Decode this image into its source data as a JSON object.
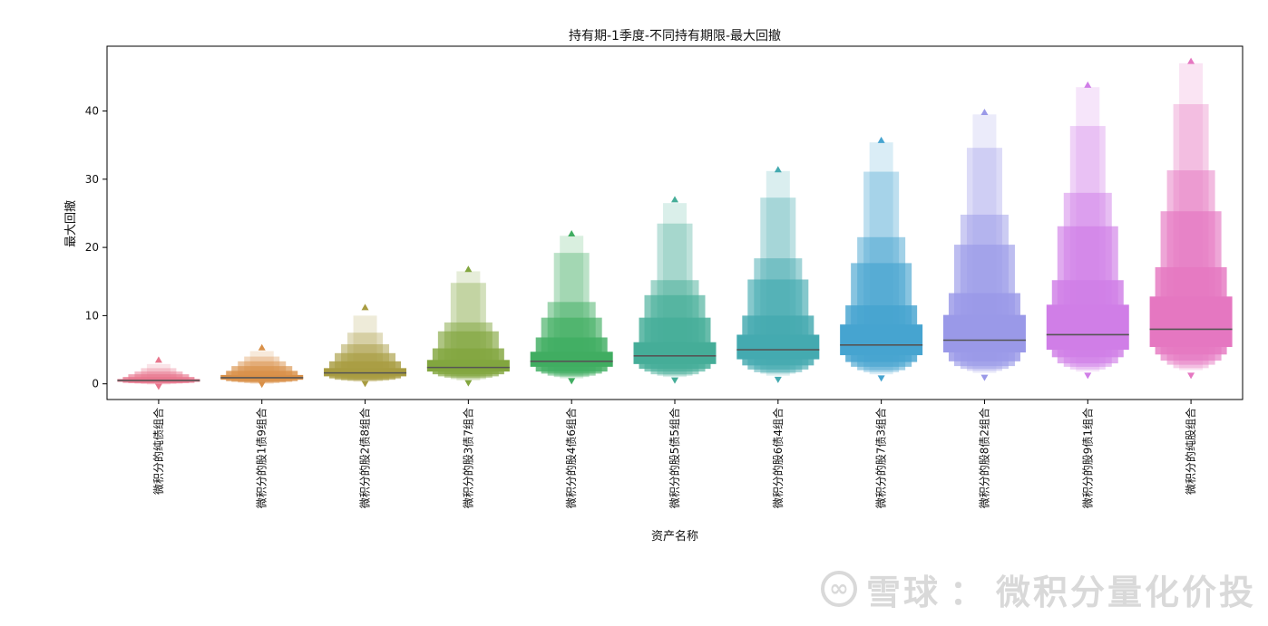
{
  "chart_data": {
    "type": "boxen",
    "title": "持有期-1季度-不同持有期限-最大回撤",
    "xlabel": "资产名称",
    "ylabel": "最大回撤",
    "ylim": [
      -2.3,
      49.5
    ],
    "yticks": [
      0,
      10,
      20,
      30,
      40
    ],
    "grid": false,
    "categories": [
      "微积分的纯债组合",
      "微积分的股1债9组合",
      "微积分的股2债8组合",
      "微积分的股3债7组合",
      "微积分的股4债6组合",
      "微积分的股5债5组合",
      "微积分的股6债4组合",
      "微积分的股7债3组合",
      "微积分的股8债2组合",
      "微积分的股9债1组合",
      "微积分的纯股组合"
    ],
    "colors": [
      "#e8768d",
      "#d99048",
      "#a89c41",
      "#82a63f",
      "#40ad61",
      "#45ad98",
      "#44aab0",
      "#46a4d0",
      "#9a99e8",
      "#d07ee7",
      "#e577c1"
    ],
    "series": [
      {
        "median": 0.5,
        "boxes": [
          [
            0.3,
            0.7
          ],
          [
            0.15,
            1.0
          ],
          [
            0.1,
            1.4
          ],
          [
            0.05,
            1.8
          ],
          [
            0.0,
            2.3
          ],
          [
            -0.1,
            2.9
          ]
        ],
        "outliers": [
          -0.5,
          3.5
        ]
      },
      {
        "median": 0.9,
        "boxes": [
          [
            0.6,
            1.3
          ],
          [
            0.4,
            1.9
          ],
          [
            0.3,
            2.6
          ],
          [
            0.2,
            3.3
          ],
          [
            0.1,
            4.0
          ],
          [
            0.0,
            4.8
          ]
        ],
        "outliers": [
          -0.2,
          5.3
        ]
      },
      {
        "median": 1.6,
        "boxes": [
          [
            1.1,
            2.3
          ],
          [
            0.8,
            3.3
          ],
          [
            0.6,
            4.5
          ],
          [
            0.5,
            5.8
          ],
          [
            0.4,
            7.5
          ],
          [
            0.3,
            10.0
          ]
        ],
        "outliers": [
          -0.1,
          11.2
        ]
      },
      {
        "median": 2.4,
        "boxes": [
          [
            1.8,
            3.5
          ],
          [
            1.4,
            5.2
          ],
          [
            1.1,
            7.7
          ],
          [
            0.9,
            9.0
          ],
          [
            0.7,
            14.8
          ],
          [
            0.5,
            16.5
          ]
        ],
        "outliers": [
          0.0,
          16.8
        ]
      },
      {
        "median": 3.3,
        "boxes": [
          [
            2.5,
            4.7
          ],
          [
            1.8,
            6.8
          ],
          [
            1.5,
            9.7
          ],
          [
            1.2,
            12.0
          ],
          [
            1.0,
            19.2
          ],
          [
            0.8,
            21.7
          ]
        ],
        "outliers": [
          0.3,
          22.0
        ]
      },
      {
        "median": 4.1,
        "boxes": [
          [
            2.9,
            6.1
          ],
          [
            2.2,
            9.7
          ],
          [
            1.8,
            13.0
          ],
          [
            1.4,
            15.2
          ],
          [
            1.2,
            23.5
          ],
          [
            1.0,
            26.5
          ]
        ],
        "outliers": [
          0.4,
          27.0
        ]
      },
      {
        "median": 5.0,
        "boxes": [
          [
            3.6,
            7.2
          ],
          [
            2.7,
            10.0
          ],
          [
            2.1,
            15.3
          ],
          [
            1.7,
            18.4
          ],
          [
            1.5,
            27.3
          ],
          [
            1.2,
            31.2
          ]
        ],
        "outliers": [
          0.5,
          31.4
        ]
      },
      {
        "median": 5.7,
        "boxes": [
          [
            4.2,
            8.7
          ],
          [
            3.2,
            11.5
          ],
          [
            2.5,
            17.7
          ],
          [
            2.0,
            21.5
          ],
          [
            1.7,
            31.1
          ],
          [
            1.4,
            35.4
          ]
        ],
        "outliers": [
          0.7,
          35.7
        ]
      },
      {
        "median": 6.4,
        "boxes": [
          [
            4.6,
            10.1
          ],
          [
            3.3,
            13.3
          ],
          [
            2.6,
            20.4
          ],
          [
            2.2,
            24.8
          ],
          [
            1.9,
            34.6
          ],
          [
            1.6,
            39.5
          ]
        ],
        "outliers": [
          0.8,
          39.8
        ]
      },
      {
        "median": 7.2,
        "boxes": [
          [
            5.0,
            11.6
          ],
          [
            3.9,
            15.2
          ],
          [
            3.0,
            23.1
          ],
          [
            2.5,
            28.0
          ],
          [
            2.1,
            37.8
          ],
          [
            1.8,
            43.5
          ]
        ],
        "outliers": [
          1.1,
          43.8
        ]
      },
      {
        "median": 8.0,
        "boxes": [
          [
            5.4,
            12.8
          ],
          [
            4.3,
            17.1
          ],
          [
            3.4,
            25.3
          ],
          [
            2.8,
            31.3
          ],
          [
            2.3,
            41.0
          ],
          [
            2.0,
            47.0
          ]
        ],
        "outliers": [
          1.1,
          47.3
        ]
      }
    ]
  },
  "watermark": {
    "logo_text": "∞",
    "brand": "雪球",
    "separator": "：",
    "author": "微积分量化价投"
  }
}
